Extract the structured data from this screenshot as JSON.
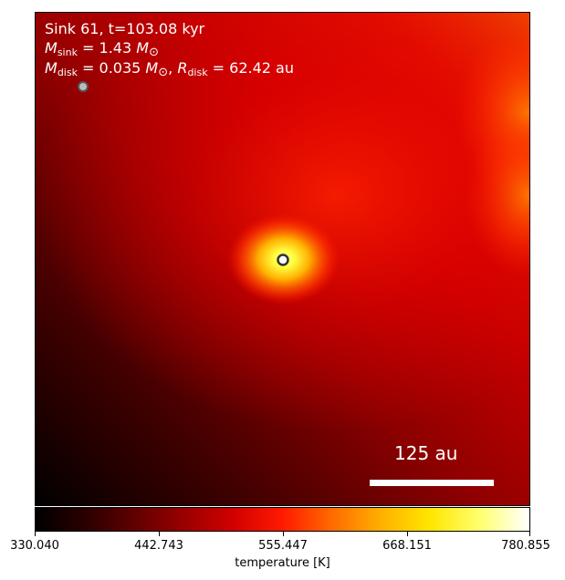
{
  "annotation": {
    "sink_line": "Sink 61, t=103.08 kyr",
    "msink_symbol": "M",
    "msink_sub": "sink",
    "msink_value": " = 1.43 ",
    "mdisk_symbol": "M",
    "mdisk_sub": "disk",
    "mdisk_value": " = 0.035 ",
    "rdisk_symbol": "R",
    "rdisk_sub": "disk",
    "rdisk_value": " = 62.42 au",
    "solar_mass_symbol": "M",
    "solar_sub": "⊙",
    "separator": ", "
  },
  "scalebar": {
    "label": "125 au"
  },
  "colorbar": {
    "label": "temperature [K]",
    "ticks": [
      "330.040",
      "442.743",
      "555.447",
      "668.151",
      "780.855"
    ],
    "range": [
      330.04,
      780.855
    ],
    "colormap": "hot"
  },
  "colors": {
    "sink_marker": "#bbbbbb",
    "main_sink_marker": "#333333"
  }
}
